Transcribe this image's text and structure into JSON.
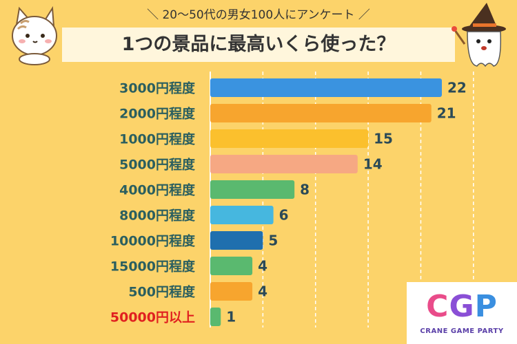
{
  "header": {
    "subtitle": "＼ 20～50代の男女100人にアンケート ／",
    "title": "1つの景品に最高いくら使った？"
  },
  "logo": {
    "mark": [
      "C",
      "G",
      "P"
    ],
    "subtitle": "CRANE GAME PARTY"
  },
  "chart_data": {
    "type": "bar",
    "orientation": "horizontal",
    "title": "1つの景品に最高いくら使った？",
    "subtitle": "＼ 20～50代の男女100人にアンケート ／",
    "categories": [
      "3000円程度",
      "2000円程度",
      "1000円程度",
      "5000円程度",
      "4000円程度",
      "8000円程度",
      "10000円程度",
      "15000円程度",
      "500円程度",
      "50000円以上"
    ],
    "values": [
      22,
      21,
      15,
      14,
      8,
      6,
      5,
      4,
      4,
      1
    ],
    "bar_colors": [
      "#3A93E0",
      "#F7A52E",
      "#FBC02D",
      "#F6A883",
      "#5AB96F",
      "#46B7DF",
      "#1F6FAE",
      "#5AB96F",
      "#F7A52E",
      "#5AB96F"
    ],
    "label_colors": [
      "#2B5F5F",
      "#2B5F5F",
      "#2B5F5F",
      "#2B5F5F",
      "#2B5F5F",
      "#2B5F5F",
      "#2B5F5F",
      "#2B5F5F",
      "#2B5F5F",
      "#E02020"
    ],
    "xlim": [
      0,
      25
    ],
    "grid": true,
    "xlabel": "",
    "ylabel": ""
  }
}
